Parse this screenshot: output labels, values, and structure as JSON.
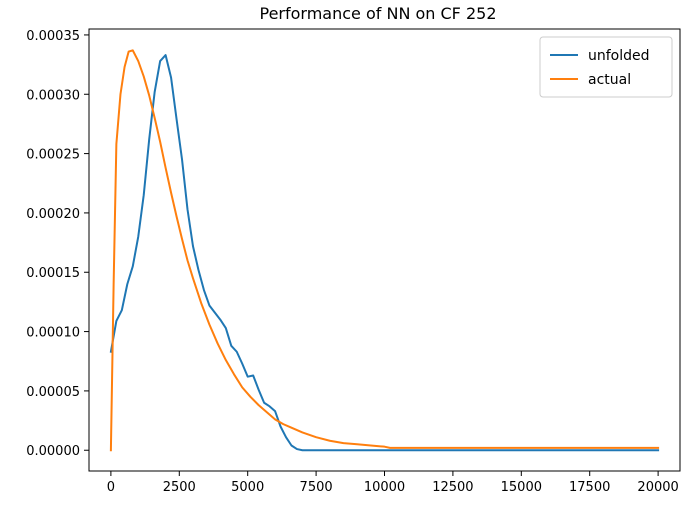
{
  "chart_data": {
    "type": "line",
    "title": "Performance of NN on CF 252",
    "xlabel": "",
    "ylabel": "",
    "xlim": [
      -800,
      20800
    ],
    "ylim": [
      -1.75e-05,
      0.000355
    ],
    "xticks": [
      0,
      2500,
      5000,
      7500,
      10000,
      12500,
      15000,
      17500,
      20000
    ],
    "xtick_labels": [
      "0",
      "2500",
      "5000",
      "7500",
      "10000",
      "12500",
      "15000",
      "17500",
      "20000"
    ],
    "yticks": [
      0,
      5e-05,
      0.0001,
      0.00015,
      0.0002,
      0.00025,
      0.0003,
      0.00035
    ],
    "ytick_labels": [
      "0.00000",
      "0.00005",
      "0.00010",
      "0.00015",
      "0.00020",
      "0.00025",
      "0.00030",
      "0.00035"
    ],
    "grid": false,
    "legend_position": "top-right",
    "series": [
      {
        "name": "unfolded",
        "color": "#1f77b4",
        "x": [
          0,
          200,
          400,
          600,
          800,
          1000,
          1200,
          1400,
          1600,
          1800,
          2000,
          2200,
          2400,
          2600,
          2800,
          3000,
          3200,
          3400,
          3600,
          3800,
          4000,
          4200,
          4400,
          4600,
          4800,
          5000,
          5200,
          5400,
          5600,
          5800,
          6000,
          6200,
          6400,
          6600,
          6800,
          7000,
          8000,
          9000,
          10000,
          10200,
          12000,
          14000,
          16000,
          18000,
          20000
        ],
        "y": [
          8.3e-05,
          0.000109,
          0.000118,
          0.00014,
          0.000155,
          0.00018,
          0.000215,
          0.000262,
          0.000302,
          0.000328,
          0.000333,
          0.000314,
          0.000279,
          0.000245,
          0.000203,
          0.000172,
          0.000152,
          0.000135,
          0.000122,
          0.000116,
          0.00011,
          0.000103,
          8.8e-05,
          8.3e-05,
          7.3e-05,
          6.2e-05,
          6.3e-05,
          5.1e-05,
          4e-05,
          3.7e-05,
          3.3e-05,
          2e-05,
          1.1e-05,
          4e-06,
          1e-06,
          0.0,
          0.0,
          0.0,
          0.0,
          0.0,
          0.0,
          0.0,
          0.0,
          0.0,
          0.0
        ]
      },
      {
        "name": "actual",
        "color": "#ff7f0e",
        "x": [
          0,
          100,
          200,
          350,
          500,
          650,
          800,
          1000,
          1200,
          1400,
          1600,
          1800,
          2000,
          2200,
          2400,
          2600,
          2800,
          3000,
          3300,
          3600,
          3900,
          4200,
          4500,
          4800,
          5100,
          5400,
          5700,
          6000,
          6300,
          6600,
          7000,
          7500,
          8000,
          8500,
          9000,
          9500,
          10000,
          10200,
          11000,
          12000,
          14000,
          16000,
          18000,
          20000
        ],
        "y": [
          0.0,
          0.00014,
          0.000258,
          0.0003,
          0.000323,
          0.000336,
          0.000337,
          0.000328,
          0.000315,
          0.000299,
          0.00028,
          0.00026,
          0.000238,
          0.000217,
          0.000197,
          0.000178,
          0.00016,
          0.000145,
          0.000124,
          0.000106,
          9e-05,
          7.6e-05,
          6.4e-05,
          5.3e-05,
          4.5e-05,
          3.8e-05,
          3.2e-05,
          2.6e-05,
          2.2e-05,
          1.9e-05,
          1.5e-05,
          1.1e-05,
          8e-06,
          6e-06,
          5e-06,
          4e-06,
          3e-06,
          2e-06,
          2e-06,
          2e-06,
          2e-06,
          2e-06,
          2e-06,
          2e-06
        ]
      }
    ]
  }
}
